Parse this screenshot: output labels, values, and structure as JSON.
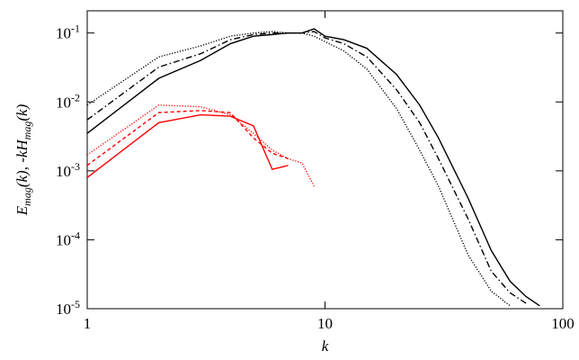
{
  "chart_data": {
    "type": "line",
    "x_label": "k",
    "y_label": "Emag(k), -kHmag(k)",
    "xscale": "log",
    "yscale": "log",
    "xlim": [
      1,
      100
    ],
    "ylim": [
      1e-05,
      0.21
    ],
    "xticks": [
      1,
      10,
      100
    ],
    "yticks": [
      {
        "value": 1e-05,
        "label": "10-5"
      },
      {
        "value": 0.0001,
        "label": "10-4"
      },
      {
        "value": 0.001,
        "label": "10-3"
      },
      {
        "value": 0.01,
        "label": "10-2"
      },
      {
        "value": 0.1,
        "label": "10-1"
      }
    ],
    "x": [
      1,
      2,
      3,
      4,
      5,
      6,
      7,
      8,
      9,
      10,
      12,
      15,
      20,
      25,
      30,
      40,
      50,
      60,
      70,
      80
    ],
    "series": [
      {
        "color": "#000000",
        "style": "solid",
        "values": [
          0.0035,
          0.022,
          0.04,
          0.07,
          0.09,
          0.095,
          0.1,
          0.1,
          0.115,
          0.09,
          0.08,
          0.06,
          0.025,
          0.009,
          0.003,
          0.0004,
          7e-05,
          2.5e-05,
          1.5e-05,
          1.1e-05
        ]
      },
      {
        "color": "#000000",
        "style": "dashdot",
        "values": [
          0.0055,
          0.032,
          0.05,
          0.08,
          0.095,
          0.1,
          0.1,
          0.1,
          0.105,
          0.085,
          0.07,
          0.045,
          0.015,
          0.005,
          0.0015,
          0.0002,
          3.5e-05,
          1.7e-05,
          1.2e-05,
          null
        ]
      },
      {
        "color": "#000000",
        "style": "dotted",
        "values": [
          0.009,
          0.045,
          0.065,
          0.09,
          0.1,
          0.105,
          0.1,
          0.1,
          0.09,
          0.075,
          0.055,
          0.03,
          0.008,
          0.002,
          0.0006,
          6e-05,
          1.8e-05,
          1.1e-05,
          null,
          null
        ]
      },
      {
        "color": "#ff0000",
        "style": "solid",
        "values": [
          0.0008,
          0.005,
          0.0065,
          0.0062,
          0.0045,
          0.00105,
          0.0012,
          null,
          null,
          null,
          null,
          null,
          null,
          null,
          null,
          null,
          null,
          null,
          null,
          null
        ]
      },
      {
        "color": "#ff0000",
        "style": "dashed",
        "values": [
          0.0012,
          0.007,
          0.0075,
          0.007,
          0.003,
          0.0018,
          0.0015,
          null,
          null,
          null,
          null,
          null,
          null,
          null,
          null,
          null,
          null,
          null,
          null,
          null
        ]
      },
      {
        "color": "#ff0000",
        "style": "dotted",
        "values": [
          0.0017,
          0.009,
          0.0085,
          0.0065,
          0.0035,
          0.002,
          0.0015,
          0.0013,
          0.0006,
          null,
          null,
          null,
          null,
          null,
          null,
          null,
          null,
          null,
          null,
          null
        ]
      }
    ]
  }
}
